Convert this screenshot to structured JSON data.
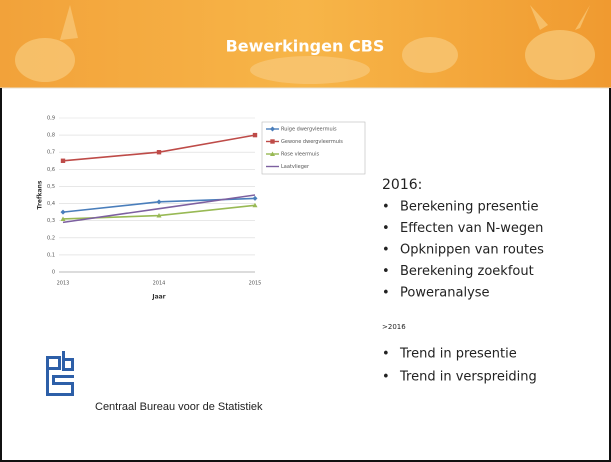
{
  "header": {
    "title": "Bewerkingen CBS"
  },
  "chart_data": {
    "type": "line",
    "xlabel": "Jaar",
    "ylabel": "Trefkans",
    "categories": [
      "2013",
      "2014",
      "2015"
    ],
    "ylim": [
      0,
      0.9
    ],
    "yticks": [
      0,
      {
        "value": 0.1,
        "label": "0,1"
      },
      {
        "value": 0.2,
        "label": "0,2"
      },
      {
        "value": 0.3,
        "label": "0,3"
      },
      {
        "value": 0.4,
        "label": "0,4"
      },
      {
        "value": 0.5,
        "label": "0,5"
      },
      {
        "value": 0.6,
        "label": "0,6"
      },
      {
        "value": 0.7,
        "label": "0,7"
      },
      {
        "value": 0.8,
        "label": "0,8"
      },
      {
        "value": 0.9,
        "label": "0,9"
      }
    ],
    "grid": true,
    "series": [
      {
        "name": "Ruige dwergvleermuis",
        "color": "#4a7ebb",
        "marker": "diamond",
        "values": [
          0.35,
          0.41,
          0.43
        ]
      },
      {
        "name": "Gewone dwergvleermuis",
        "color": "#be4b48",
        "marker": "square",
        "values": [
          0.65,
          0.7,
          0.8
        ]
      },
      {
        "name": "Rose vleermuis",
        "color": "#98b954",
        "marker": "triangle",
        "values": [
          0.31,
          0.33,
          0.39
        ]
      },
      {
        "name": "Laatvlieger",
        "color": "#7d60a0",
        "marker": "none",
        "values": [
          0.29,
          0.37,
          0.45
        ]
      }
    ]
  },
  "content": {
    "heading": "2016:",
    "items": [
      "Berekening presentie",
      "Effecten van N-wegen",
      "Opknippen van routes",
      "Berekening zoekfout",
      "Poweranalyse"
    ],
    "subheading": ">2016",
    "items2": [
      "Trend in presentie",
      "Trend in verspreiding"
    ]
  },
  "footer": {
    "organization": "Centraal Bureau voor de Statistiek"
  }
}
